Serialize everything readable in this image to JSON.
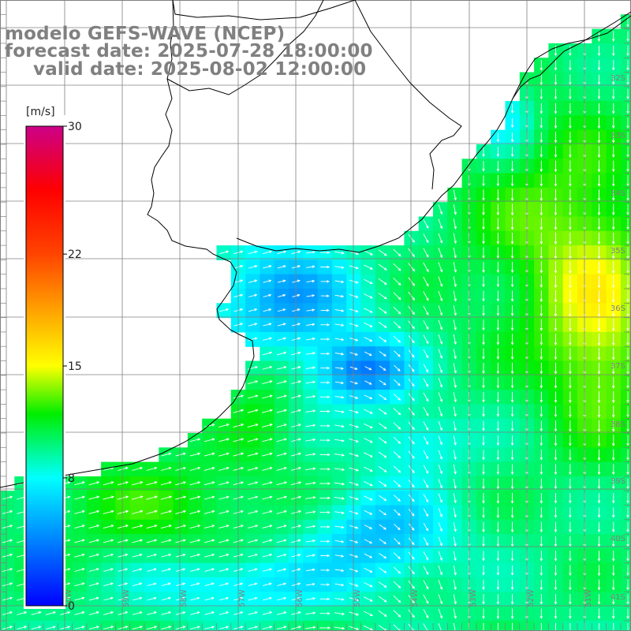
{
  "title": {
    "line1": "modelo GEFS-WAVE (NCEP)",
    "line2": "forecast date: 2025-07-28 18:00:00",
    "line3": "valid date: 2025-08-02 12:00:00"
  },
  "colorbar": {
    "units": "[m/s]",
    "ticks": [
      "30",
      "22",
      "15",
      "8",
      "0"
    ],
    "tick_values": [
      30,
      22,
      15,
      8,
      0
    ],
    "min": 0,
    "max": 30,
    "stops": [
      {
        "value": 0,
        "color": "#0000ff"
      },
      {
        "value": 8,
        "color": "#00ffff"
      },
      {
        "value": 12,
        "color": "#00ee00"
      },
      {
        "value": 15,
        "color": "#ffff00"
      },
      {
        "value": 22,
        "color": "#ff4400"
      },
      {
        "value": 26,
        "color": "#ff0000"
      },
      {
        "value": 30,
        "color": "#cc0088"
      }
    ]
  },
  "lat_labels": [
    "32S",
    "33S",
    "34S",
    "35S",
    "36S",
    "37S",
    "38S",
    "39S",
    "40S",
    "41S"
  ],
  "lon_labels": [
    "60W",
    "59W",
    "58W",
    "57W",
    "56W",
    "55W",
    "54W",
    "53W",
    "52W",
    "51W"
  ],
  "colors": {
    "land": "#ffffff",
    "grid": "#808080",
    "coast": "#000000",
    "arrow": "#ffffff",
    "title": "#808080"
  }
}
